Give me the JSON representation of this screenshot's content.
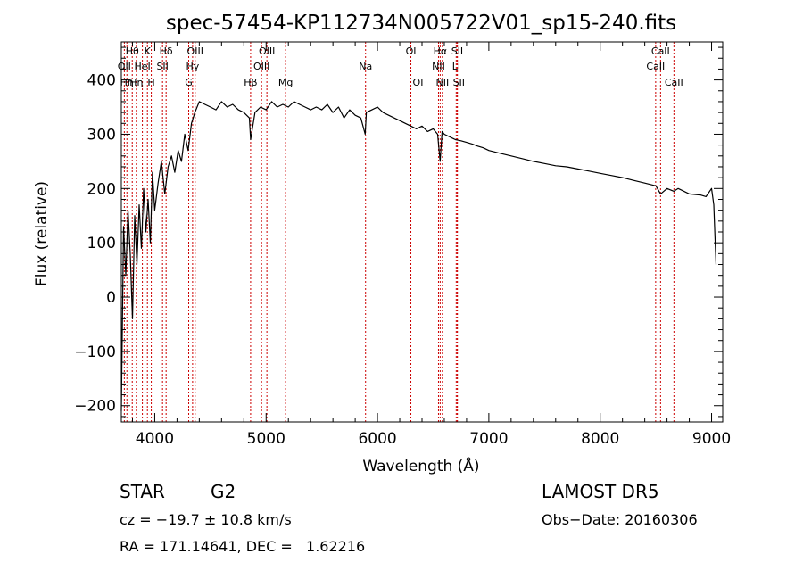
{
  "chart_data": {
    "type": "line",
    "title": "spec-57454-KP112734N005722V01_sp15-240.fits",
    "xlabel": "Wavelength (Å)",
    "ylabel": "Flux (relative)",
    "xlim": [
      3700,
      9100
    ],
    "ylim": [
      -230,
      470
    ],
    "x_ticks": [
      4000,
      5000,
      6000,
      7000,
      8000,
      9000
    ],
    "y_ticks": [
      -200,
      -100,
      0,
      100,
      200,
      300,
      400
    ],
    "grid": false,
    "line_color": "#000000",
    "marker_color": "#cc0000",
    "series": [
      {
        "x": [
          3700,
          3720,
          3740,
          3760,
          3780,
          3800,
          3820,
          3840,
          3860,
          3880,
          3900,
          3920,
          3940,
          3960,
          3980,
          4000,
          4030,
          4060,
          4090,
          4120,
          4150,
          4180,
          4210,
          4240,
          4270,
          4300,
          4330,
          4360,
          4400,
          4450,
          4500,
          4550,
          4600,
          4650,
          4700,
          4750,
          4800,
          4850,
          4861,
          4900,
          4950,
          5000,
          5050,
          5100,
          5150,
          5200,
          5250,
          5300,
          5350,
          5400,
          5450,
          5500,
          5550,
          5600,
          5650,
          5700,
          5750,
          5800,
          5850,
          5890,
          5900,
          5950,
          6000,
          6050,
          6100,
          6150,
          6200,
          6250,
          6300,
          6350,
          6400,
          6450,
          6500,
          6540,
          6563,
          6580,
          6600,
          6650,
          6700,
          6750,
          6800,
          6850,
          6900,
          6950,
          7000,
          7100,
          7200,
          7300,
          7400,
          7500,
          7600,
          7700,
          7800,
          7900,
          8000,
          8100,
          8200,
          8300,
          8400,
          8500,
          8542,
          8600,
          8662,
          8700,
          8800,
          8900,
          8950,
          9000,
          9020,
          9040
        ],
        "y": [
          -210,
          130,
          40,
          160,
          80,
          -40,
          150,
          60,
          170,
          90,
          200,
          120,
          180,
          100,
          230,
          160,
          210,
          250,
          190,
          240,
          260,
          230,
          270,
          250,
          300,
          270,
          320,
          340,
          360,
          355,
          350,
          345,
          360,
          350,
          355,
          345,
          340,
          330,
          290,
          340,
          350,
          345,
          360,
          350,
          355,
          350,
          360,
          355,
          350,
          345,
          350,
          345,
          355,
          340,
          350,
          330,
          345,
          335,
          330,
          300,
          340,
          345,
          350,
          340,
          335,
          330,
          325,
          320,
          315,
          310,
          315,
          305,
          310,
          300,
          250,
          305,
          300,
          295,
          290,
          288,
          285,
          282,
          278,
          275,
          270,
          265,
          260,
          255,
          250,
          246,
          242,
          240,
          236,
          232,
          228,
          224,
          220,
          215,
          210,
          205,
          190,
          200,
          195,
          200,
          190,
          188,
          185,
          200,
          170,
          60
        ]
      }
    ],
    "line_markers": [
      {
        "wl": 3727,
        "label": "OII",
        "row": 2
      },
      {
        "wl": 3750,
        "label": "Hη",
        "row": 3
      },
      {
        "wl": 3798,
        "label": "Hθ",
        "row": 1
      },
      {
        "wl": 3835,
        "label": "Hη",
        "row": 3
      },
      {
        "wl": 3889,
        "label": "HeI",
        "row": 2
      },
      {
        "wl": 3934,
        "label": "K",
        "row": 1
      },
      {
        "wl": 3969,
        "label": "H",
        "row": 3
      },
      {
        "wl": 4070,
        "label": "SII",
        "row": 2
      },
      {
        "wl": 4102,
        "label": "Hδ",
        "row": 1
      },
      {
        "wl": 4305,
        "label": "G",
        "row": 3
      },
      {
        "wl": 4340,
        "label": "Hγ",
        "row": 2
      },
      {
        "wl": 4363,
        "label": "OIII",
        "row": 1
      },
      {
        "wl": 4861,
        "label": "Hβ",
        "row": 3
      },
      {
        "wl": 4959,
        "label": "OIII",
        "row": 2
      },
      {
        "wl": 5007,
        "label": "OIII",
        "row": 1
      },
      {
        "wl": 5175,
        "label": "Mg",
        "row": 3
      },
      {
        "wl": 5893,
        "label": "Na",
        "row": 2
      },
      {
        "wl": 6300,
        "label": "OI",
        "row": 1
      },
      {
        "wl": 6364,
        "label": "OI",
        "row": 3
      },
      {
        "wl": 6548,
        "label": "NII",
        "row": 2
      },
      {
        "wl": 6563,
        "label": "Hα",
        "row": 1
      },
      {
        "wl": 6583,
        "label": "NII",
        "row": 3
      },
      {
        "wl": 6707,
        "label": "Li",
        "row": 2
      },
      {
        "wl": 6716,
        "label": "SII",
        "row": 1
      },
      {
        "wl": 6731,
        "label": "SII",
        "row": 3
      },
      {
        "wl": 8498,
        "label": "CaII",
        "row": 2
      },
      {
        "wl": 8542,
        "label": "CaII",
        "row": 1
      },
      {
        "wl": 8662,
        "label": "CaII",
        "row": 3
      }
    ]
  },
  "info": {
    "class_label": "STAR",
    "subclass": "G2",
    "survey": "LAMOST DR5",
    "cz": "cz = −19.7 ± 10.8 km/s",
    "obs_date": "Obs−Date: 20160306",
    "coords": "RA = 171.14641, DEC =   1.62216"
  }
}
